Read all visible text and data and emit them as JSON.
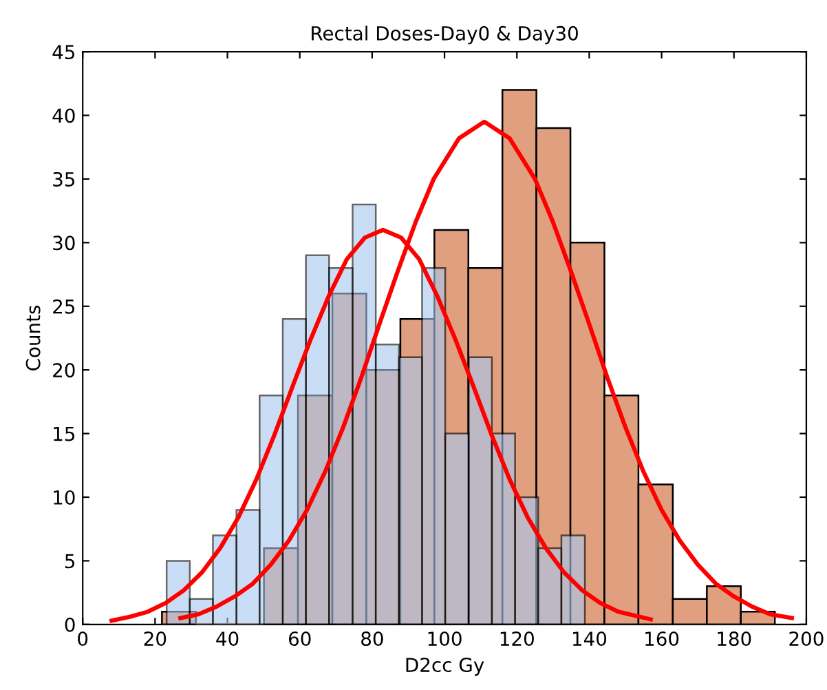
{
  "chart_data": {
    "type": "histogram",
    "title": "Rectal Doses-Day0 & Day30",
    "xlabel": "D2cc Gy",
    "ylabel": "Counts",
    "xlim": [
      0,
      200
    ],
    "xticks": [
      0,
      20,
      40,
      60,
      80,
      100,
      120,
      140,
      160,
      180,
      200
    ],
    "ylim": [
      0,
      45
    ],
    "yticks": [
      0,
      5,
      10,
      15,
      20,
      25,
      30,
      35,
      40,
      45
    ],
    "grid": false,
    "legend": false,
    "series": [
      {
        "color": "#a6c8f0",
        "bins": [
          23.2,
          29.6,
          36.0,
          42.5,
          48.9,
          55.3,
          61.7,
          68.1,
          74.6,
          81.0,
          87.4,
          93.8,
          100.2,
          106.7,
          113.1,
          119.5,
          125.9,
          132.3,
          138.8
        ],
        "values": [
          5,
          2,
          7,
          9,
          18,
          24,
          29,
          28,
          33,
          22,
          21,
          28,
          15,
          21,
          15,
          10,
          6,
          7
        ]
      },
      {
        "color": "#e0a080",
        "bins": [
          21.9,
          31.3,
          40.7,
          50.1,
          59.5,
          69.0,
          78.4,
          87.8,
          97.2,
          106.6,
          116.0,
          125.4,
          134.8,
          144.2,
          153.6,
          163.1,
          172.5,
          181.9,
          191.3
        ],
        "values": [
          1,
          0,
          0,
          6,
          18,
          26,
          20,
          24,
          31,
          28,
          42,
          39,
          30,
          18,
          11,
          2,
          3,
          1
        ]
      },
      {
        "type": "line",
        "color": "#ff0000",
        "x": [
          8,
          13,
          18,
          23,
          28,
          33,
          38,
          43,
          48,
          53,
          58,
          63,
          68,
          73,
          78,
          83,
          88,
          93,
          98,
          103,
          108,
          113,
          118,
          123,
          128,
          133,
          138,
          143,
          148,
          157
        ],
        "values": [
          0.3,
          0.6,
          1.0,
          1.7,
          2.7,
          4.1,
          6.0,
          8.4,
          11.4,
          14.9,
          18.7,
          22.4,
          25.8,
          28.7,
          30.4,
          31.0,
          30.4,
          28.7,
          25.8,
          22.4,
          18.7,
          14.9,
          11.4,
          8.4,
          6.0,
          4.1,
          2.7,
          1.7,
          1.0,
          0.4
        ]
      },
      {
        "type": "line",
        "color": "#ff0000",
        "x": [
          27,
          32,
          37,
          42,
          47,
          52,
          57,
          62,
          67,
          72,
          77,
          82,
          87,
          92,
          97,
          104,
          111,
          118,
          125,
          130,
          135,
          140,
          145,
          150,
          155,
          160,
          165,
          170,
          175,
          180,
          185,
          190,
          196
        ],
        "values": [
          0.5,
          0.8,
          1.4,
          2.2,
          3.2,
          4.7,
          6.6,
          9.0,
          12.0,
          15.5,
          19.4,
          23.6,
          27.7,
          31.6,
          35.0,
          38.2,
          39.5,
          38.2,
          35.0,
          31.6,
          27.7,
          23.6,
          19.4,
          15.5,
          12.0,
          9.0,
          6.6,
          4.7,
          3.2,
          2.2,
          1.4,
          0.8,
          0.5
        ]
      }
    ]
  }
}
